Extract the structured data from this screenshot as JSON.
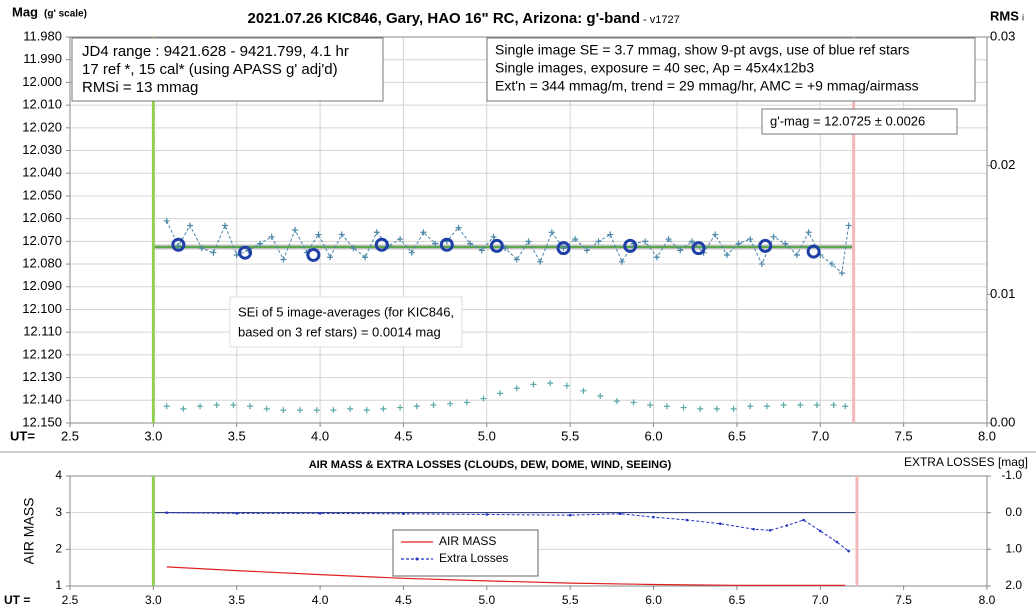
{
  "chart_data": [
    {
      "type": "scatter",
      "title": "2021.07.26 KIC846, Gary, HAO 16\" RC, Arizona: g'-band",
      "subtitle": "- v1727",
      "y_label": "Mag",
      "y_label_sub": "(g' scale)",
      "y2_label": "RMS",
      "y2_label_sub": "i",
      "x_label": "UT=",
      "xlim": [
        2.5,
        8.0
      ],
      "xticks": [
        2.5,
        {
          "value": 3,
          "label": "3.0"
        },
        3.5,
        {
          "value": 4,
          "label": "4.0"
        },
        4.5,
        {
          "value": 5,
          "label": "5.0"
        },
        5.5,
        {
          "value": 6,
          "label": "6.0"
        },
        6.5,
        {
          "value": 7,
          "label": "7.0"
        },
        7.5,
        {
          "value": 8,
          "label": "8.0"
        }
      ],
      "ylim": [
        11.98,
        12.15
      ],
      "y_inverted": true,
      "yticks": [
        {
          "value": 11.98,
          "label": "11.980"
        },
        {
          "value": 11.99,
          "label": "11.990"
        },
        {
          "value": 12.0,
          "label": "12.000"
        },
        {
          "value": 12.01,
          "label": "12.010"
        },
        {
          "value": 12.02,
          "label": "12.020"
        },
        {
          "value": 12.03,
          "label": "12.030"
        },
        {
          "value": 12.04,
          "label": "12.040"
        },
        {
          "value": 12.05,
          "label": "12.050"
        },
        {
          "value": 12.06,
          "label": "12.060"
        },
        {
          "value": 12.07,
          "label": "12.070"
        },
        {
          "value": 12.08,
          "label": "12.080"
        },
        {
          "value": 12.09,
          "label": "12.090"
        },
        {
          "value": 12.1,
          "label": "12.100"
        },
        {
          "value": 12.11,
          "label": "12.110"
        },
        {
          "value": 12.12,
          "label": "12.120"
        },
        {
          "value": 12.13,
          "label": "12.130"
        },
        {
          "value": 12.14,
          "label": "12.140"
        },
        {
          "value": 12.15,
          "label": "12.150"
        }
      ],
      "y2lim": [
        0,
        0.03
      ],
      "y2ticks": [
        {
          "value": 0,
          "label": "0.00"
        },
        0.01,
        0.02,
        0.03
      ],
      "grid": true,
      "vlines": [
        {
          "value": 3.0,
          "color": "#92d050"
        },
        {
          "value": 7.2,
          "color": "#f4b8b8"
        }
      ],
      "hlines": [
        {
          "value": 12.0725,
          "color": "#c0c0c0",
          "width": 5
        },
        {
          "value": 12.0725,
          "color": "#5aa84a",
          "width": 2
        }
      ],
      "series": [
        {
          "marker": "plus",
          "line": "dashed",
          "color": "#4a86a8",
          "x": [
            3.08,
            3.15,
            3.22,
            3.29,
            3.36,
            3.43,
            3.5,
            3.57,
            3.64,
            3.71,
            3.78,
            3.85,
            3.92,
            3.99,
            4.06,
            4.13,
            4.2,
            4.27,
            4.34,
            4.41,
            4.48,
            4.55,
            4.62,
            4.69,
            4.76,
            4.83,
            4.9,
            4.97,
            5.04,
            5.11,
            5.18,
            5.25,
            5.32,
            5.39,
            5.46,
            5.53,
            5.6,
            5.67,
            5.74,
            5.81,
            5.88,
            5.95,
            6.02,
            6.09,
            6.16,
            6.23,
            6.3,
            6.37,
            6.44,
            6.51,
            6.58,
            6.65,
            6.72,
            6.79,
            6.86,
            6.93,
            7.0,
            7.07,
            7.13,
            7.17
          ],
          "values": [
            12.061,
            12.072,
            12.063,
            12.073,
            12.075,
            12.063,
            12.076,
            12.074,
            12.071,
            12.068,
            12.078,
            12.065,
            12.075,
            12.067,
            12.077,
            12.067,
            12.073,
            12.077,
            12.066,
            12.072,
            12.069,
            12.075,
            12.066,
            12.071,
            12.07,
            12.064,
            12.071,
            12.074,
            12.068,
            12.073,
            12.078,
            12.07,
            12.079,
            12.066,
            12.073,
            12.069,
            12.074,
            12.07,
            12.067,
            12.079,
            12.071,
            12.07,
            12.077,
            12.069,
            12.074,
            12.07,
            12.075,
            12.067,
            12.076,
            12.071,
            12.069,
            12.08,
            12.068,
            12.071,
            12.076,
            12.066,
            12.076,
            12.08,
            12.084,
            12.063
          ]
        },
        {
          "marker": "circle",
          "color": "#1f3fa8",
          "x": [
            3.15,
            3.55,
            3.96,
            4.37,
            4.76,
            5.06,
            5.46,
            5.86,
            6.27,
            6.67,
            6.96
          ],
          "values": [
            12.0715,
            12.075,
            12.076,
            12.0715,
            12.0715,
            12.072,
            12.073,
            12.072,
            12.073,
            12.072,
            12.0745
          ]
        },
        {
          "marker": "plus",
          "color": "#5aa8a8",
          "axis": "y2",
          "x": [
            3.08,
            3.18,
            3.28,
            3.38,
            3.48,
            3.58,
            3.68,
            3.78,
            3.88,
            3.98,
            4.08,
            4.18,
            4.28,
            4.38,
            4.48,
            4.58,
            4.68,
            4.78,
            4.88,
            4.98,
            5.08,
            5.18,
            5.28,
            5.38,
            5.48,
            5.58,
            5.68,
            5.78,
            5.88,
            5.98,
            6.08,
            6.18,
            6.28,
            6.38,
            6.48,
            6.58,
            6.68,
            6.78,
            6.88,
            6.98,
            7.08,
            7.15
          ],
          "values": [
            0.0013,
            0.0011,
            0.0013,
            0.0014,
            0.0014,
            0.0013,
            0.0011,
            0.001,
            0.001,
            0.001,
            0.001,
            0.0011,
            0.001,
            0.0011,
            0.0012,
            0.0013,
            0.0014,
            0.0015,
            0.0016,
            0.0019,
            0.0023,
            0.0027,
            0.003,
            0.0031,
            0.0029,
            0.0025,
            0.0021,
            0.0017,
            0.0016,
            0.0014,
            0.0013,
            0.0012,
            0.0011,
            0.0011,
            0.0011,
            0.0013,
            0.0013,
            0.0014,
            0.0014,
            0.0014,
            0.0014,
            0.0013
          ]
        }
      ],
      "annotations": [
        [
          "JD4 range : 9421.628 - 9421.799,  4.1  hr",
          "17 ref *, 15 cal* (using APASS g' adj'd)",
          "RMSi = 13 mmag"
        ],
        [
          "Single image SE = 3.7 mmag, show  9-pt avgs, use of blue ref stars",
          "Single images, exposure = 40 sec, Ap = 45x4x12b3",
          "Ext'n = 344 mmag/m, trend = 29 mmag/hr, AMC = +9 mmag/airmass"
        ],
        [
          "g'-mag = 12.0725 ± 0.0026"
        ],
        [
          "SEi of 5 image-averages (for KIC846,",
          "based on 3 ref stars) = 0.0014 mag"
        ]
      ]
    },
    {
      "type": "line",
      "title": "AIR MASS & EXTRA LOSSES (CLOUDS, DEW, DOME, WIND, SEEING)",
      "y_label": "AIR MASS",
      "y2_label": "EXTRA LOSSES [mag]",
      "x_label": "UT =",
      "xlim": [
        2.5,
        8.0
      ],
      "xticks": [
        2.5,
        {
          "value": 3,
          "label": "3.0"
        },
        3.5,
        {
          "value": 4,
          "label": "4.0"
        },
        4.5,
        {
          "value": 5,
          "label": "5.0"
        },
        5.5,
        {
          "value": 6,
          "label": "6.0"
        },
        6.5,
        {
          "value": 7,
          "label": "7.0"
        },
        7.5,
        {
          "value": 8,
          "label": "8.0"
        }
      ],
      "ylim": [
        1,
        4
      ],
      "yticks": [
        1,
        2,
        3,
        4
      ],
      "y2lim": [
        -1,
        2
      ],
      "y2_inverted": true,
      "y2ticks": [
        {
          "value": -1,
          "label": "-1.0"
        },
        {
          "value": 0,
          "label": "0.0"
        },
        {
          "value": 1,
          "label": "1.0"
        },
        {
          "value": 2,
          "label": "2.0"
        }
      ],
      "grid": "y",
      "vlines": [
        {
          "value": 3.0,
          "color": "#92d050"
        },
        {
          "value": 7.22,
          "color": "#f4b8b8"
        }
      ],
      "hlines": [
        {
          "value": 0,
          "axis": "y2",
          "color": "#1f2f6a",
          "width": 1
        }
      ],
      "series": [
        {
          "name": "AIR MASS",
          "color": "#e02020",
          "line": "solid",
          "x": [
            3.08,
            3.5,
            4.0,
            4.5,
            5.0,
            5.5,
            6.0,
            6.5,
            7.0,
            7.15
          ],
          "values": [
            1.52,
            1.42,
            1.31,
            1.21,
            1.14,
            1.08,
            1.04,
            1.02,
            1.02,
            1.02
          ]
        },
        {
          "name": "Extra Losses",
          "color": "#2030c0",
          "line": "dashed",
          "axis": "y2",
          "marker": "dot",
          "x": [
            3.08,
            3.5,
            4.0,
            4.5,
            5.0,
            5.5,
            5.8,
            6.0,
            6.2,
            6.4,
            6.6,
            6.7,
            6.8,
            6.9,
            7.0,
            7.1,
            7.17
          ],
          "values": [
            0.0,
            0.02,
            0.02,
            0.03,
            0.05,
            0.07,
            0.03,
            0.12,
            0.2,
            0.3,
            0.45,
            0.48,
            0.35,
            0.2,
            0.5,
            0.8,
            1.05
          ]
        }
      ],
      "legend": "center"
    }
  ]
}
